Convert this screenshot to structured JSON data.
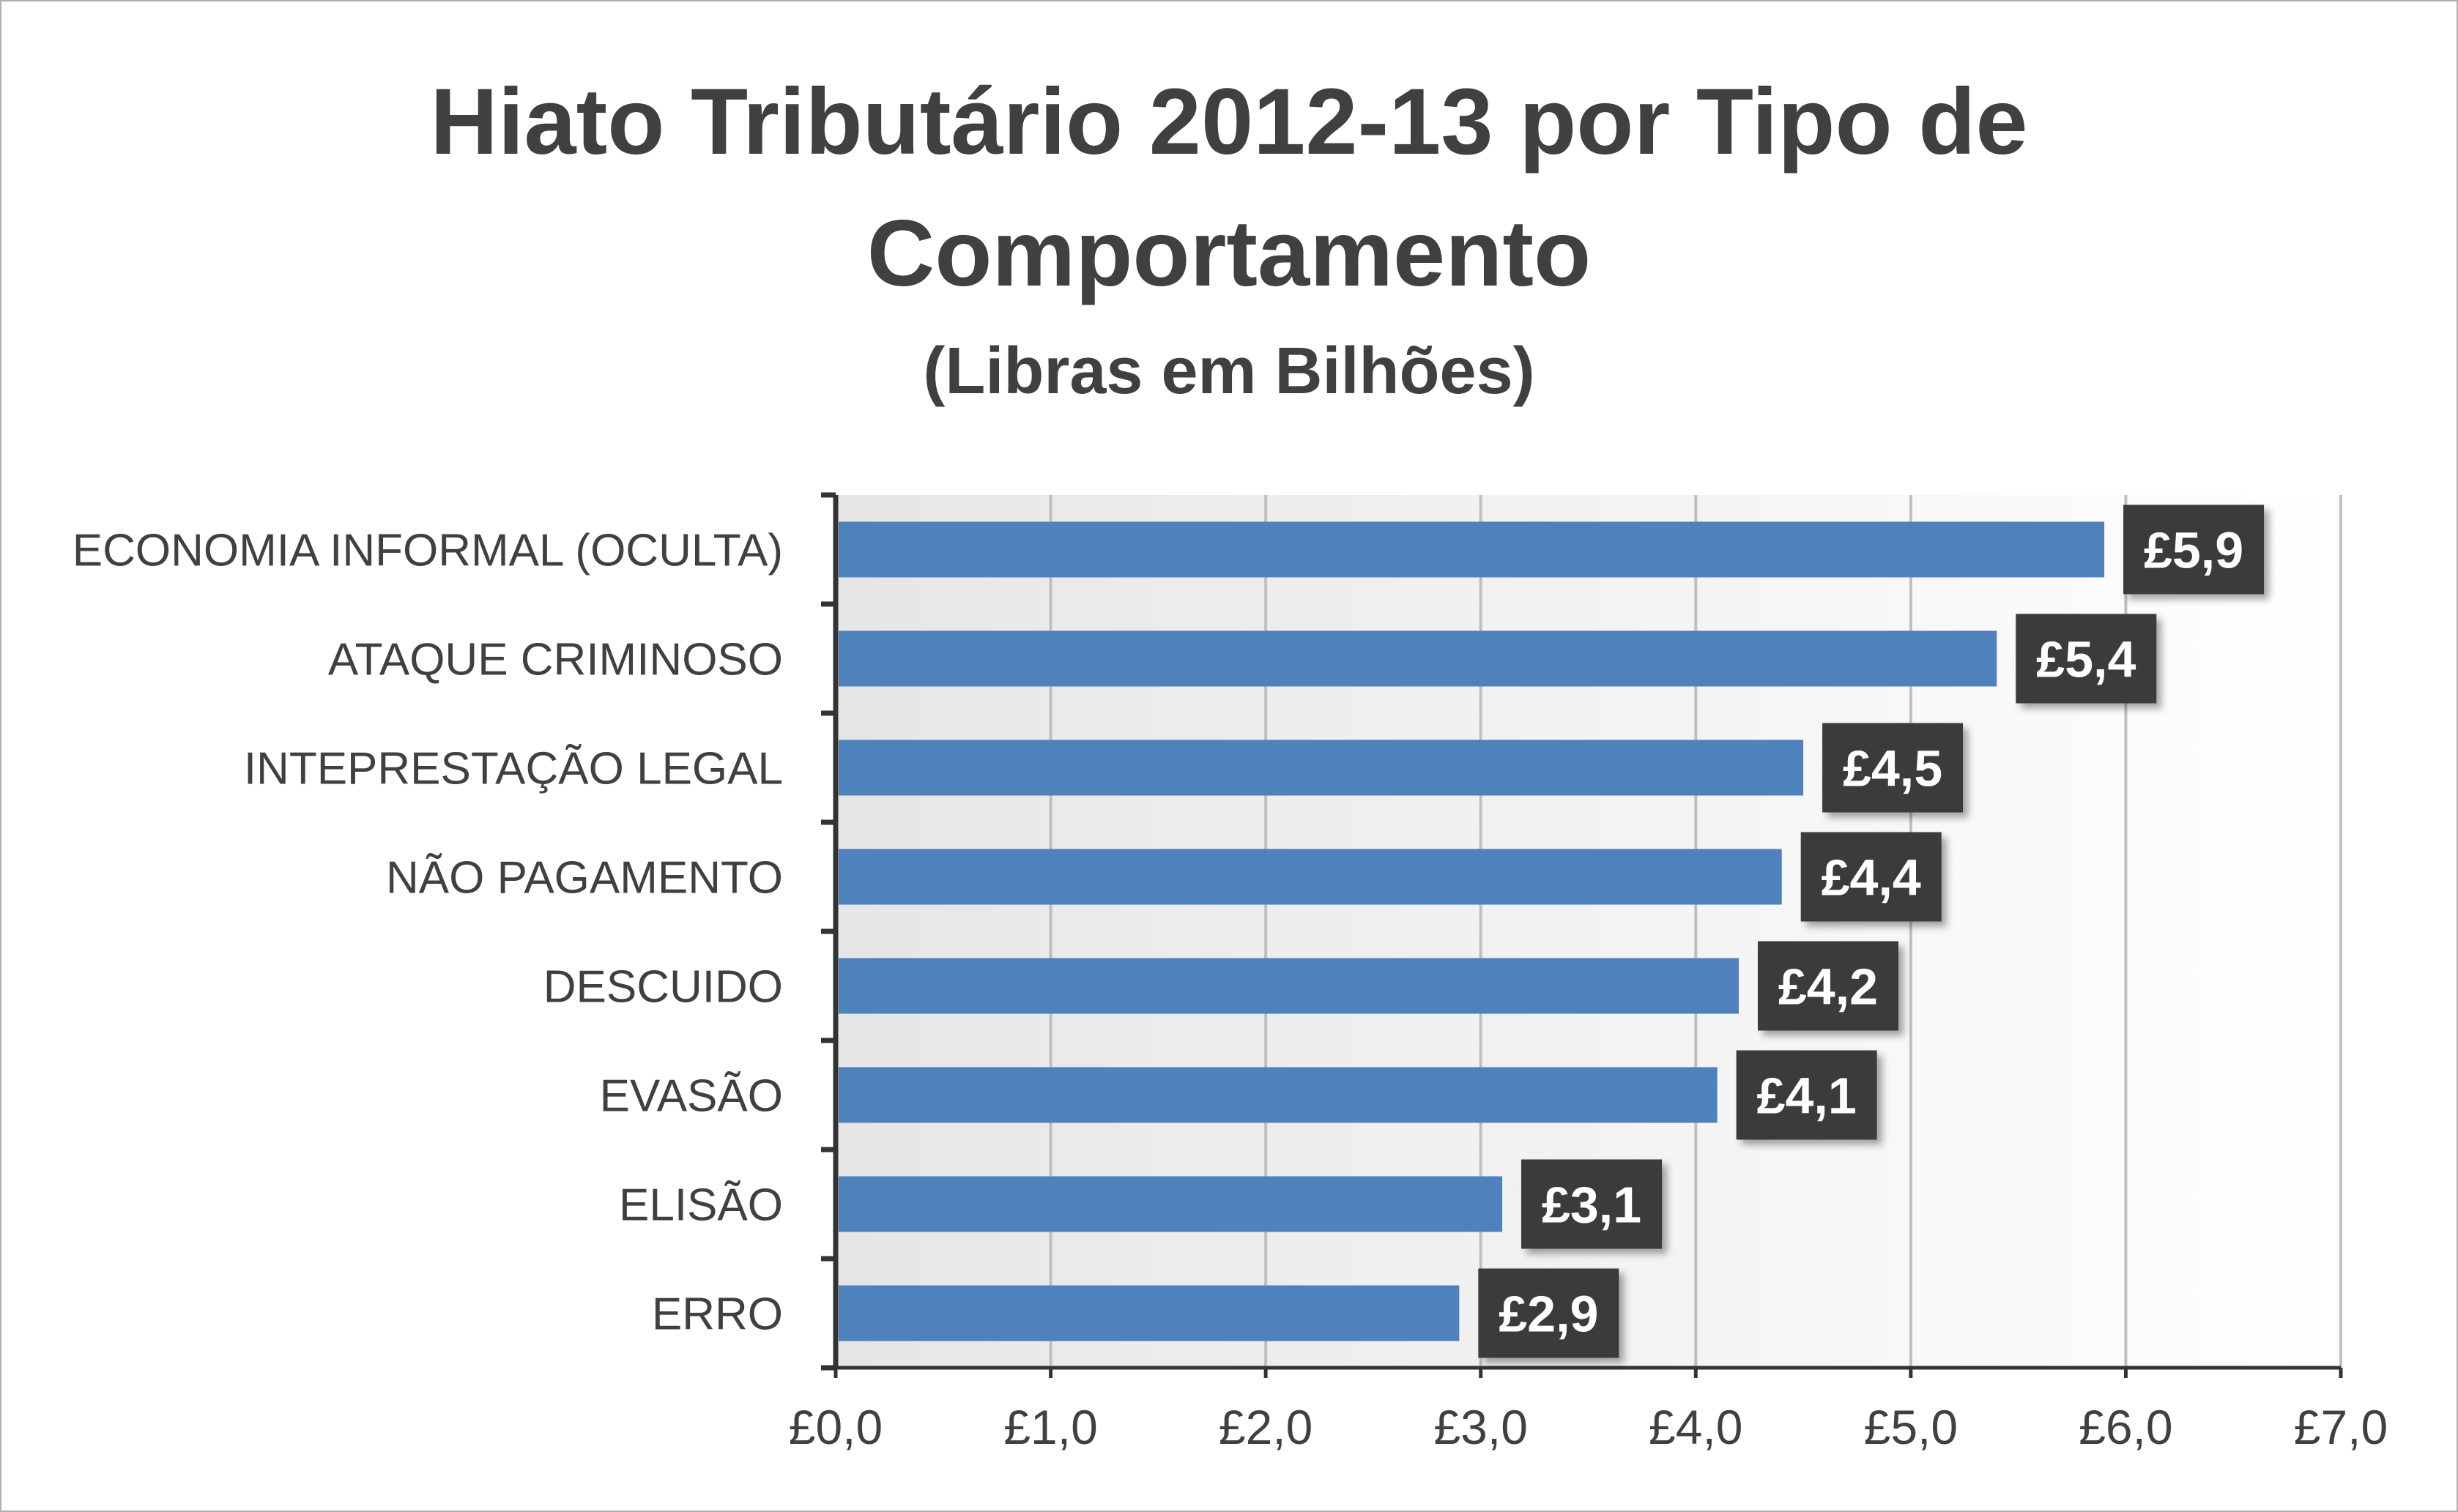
{
  "chart_data": {
    "type": "bar",
    "orientation": "horizontal",
    "title_lines": [
      "Hiato Tributário 2012-13 por Tipo de",
      "Comportamento"
    ],
    "subtitle": "(Libras em Bilhões)",
    "categories": [
      "ECONOMIA INFORMAL (OCULTA)",
      "ATAQUE CRIMINOSO",
      "INTEPRESTAÇÃO LEGAL",
      "NÃO PAGAMENTO",
      "DESCUIDO",
      "EVASÃO",
      "ELISÃO",
      "ERRO"
    ],
    "values": [
      5.9,
      5.4,
      4.5,
      4.4,
      4.2,
      4.1,
      3.1,
      2.9
    ],
    "data_labels": [
      "£5,9",
      "£5,4",
      "£4,5",
      "£4,4",
      "£4,2",
      "£4,1",
      "£3,1",
      "£2,9"
    ],
    "xlim": [
      0,
      7
    ],
    "x_ticks": [
      0,
      1,
      2,
      3,
      4,
      5,
      6,
      7
    ],
    "x_tick_labels": [
      "£0,0",
      "£1,0",
      "£2,0",
      "£3,0",
      "£4,0",
      "£5,0",
      "£6,0",
      "£7,0"
    ],
    "xlabel": "",
    "ylabel": "",
    "grid": true,
    "legend": "none",
    "colors": {
      "bar": "#4f81bd",
      "label_box": "#3a3a3a",
      "label_text": "#ffffff",
      "text": "#404040",
      "gridline": "#bfbfbf",
      "plot_bg_start": "#e6e6e6",
      "plot_bg_end": "#ffffff",
      "axis": "#333333"
    }
  }
}
